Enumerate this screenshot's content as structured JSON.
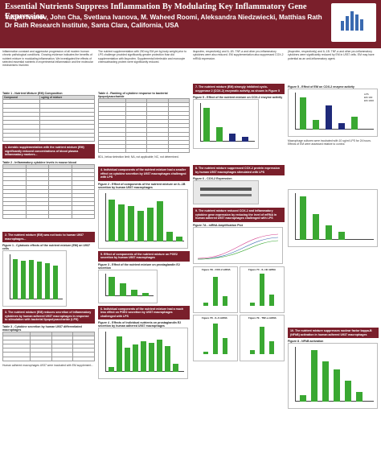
{
  "header": {
    "title": "Essential Nutrients Suppress Inflammation By Modulating Key Inflammatory Gene Expression",
    "authors": "Vadim Ivanov, John Cha, Svetlana Ivanova, M. Waheed Roomi, Aleksandra Niedzwiecki, Matthias Rath",
    "affiliation": "Dr Rath Research Institute, Santa Clara, California, USA"
  },
  "colors": {
    "brand": "#7a1f2b",
    "bar_green": "#3aa832",
    "bar_dark": "#1f2a7a",
    "line_pink": "#d43f8d"
  },
  "col1": {
    "table1_title": "Table 1 - Nutrient Mixture (EM) Composition",
    "table1_head": [
      "Compound",
      "ug/mg of mixture"
    ],
    "box1": "1. Aerobic supplementation with the nutrient mixture (EM) significantly reduced concentrations of blood plasma inflammatory markers...",
    "table2_title": "Table 2 - Inflammatory cytokine levels in mouse blood",
    "box2": "2. The nutrient mixture (EM) was not toxic to human U937 macrophages...",
    "fig1_title": "Figure 1 - Cytotoxic effects of the nutrient mixture (EM) on U937 cells",
    "box3": "3. The nutrient mixture (EM) reduces secretion of inflammatory cytokines by human adhered U937 macrophages in response to stimulation with bacterial lipopolysaccharide (LPS)",
    "table3_title": "Table 3 - Cytokine secretion by human U937 differentiated macrophages",
    "footer_note": "Human adhered macrophages U937 were incubated with EM supplement..."
  },
  "col2": {
    "table4_title": "Table 4 - Ranking of cytokine response to bacterial lipopolysaccharide",
    "box4": "4. Individual components of the nutrient mixture had a smaller effect on cytokine secretion by U937 macrophages challenged with LPS",
    "fig2_title": "Figure 2 - Effect of components of the nutrient mixture on IL-1B secretion by human U937 macrophages",
    "box5": "5. Effect of components of the nutrient mixture on PGE2 secretion by human U937 macrophages",
    "fig3_title": "Figure 3 - Effect of the nutrient mixture on prostaglandin E2 secretion",
    "box6": "6. Individual components of the nutrient mixture had a much less effect on PGE2 secretion by U937 macrophages challenged with LPS",
    "fig4_title": "Figure 4 - Effects of individual nutrients on prostaglandin E2 secretion by human adhered U937 macrophages"
  },
  "col3": {
    "box7": "7. The nutrient mixture (EM) strongly inhibited cyclo-oxygenase 2 (COX-2) enzymatic activity, as shown in Figure 5",
    "fig5_title": "Figure 5 - Effect of the nutrient mixture on COX-2 enzyme activity",
    "box8": "8. The nutrient mixture suppressed COX-2 protein expression by human U937 macrophages stimulated with LPS",
    "fig6_title": "Figure 6 - COX-2 Expression",
    "box9": "9. The nutrient mixture reduced COX-2 and inflammatory cytokine gene expression by reducing the level of mRNA in human adhered U937 macrophages challenged with LPS",
    "fig7a_title": "Figure 7A - mRNA Amplification Plot",
    "fig8_labels": [
      "Figure 7B - COX-2 mRNA",
      "Figure 7C - IL-1B mRNA",
      "Figure 7D - IL-6 mRNA",
      "Figure 7E - TNF-a mRNA"
    ]
  },
  "col4": {
    "fig_cox_title": "Figure 5 - Effect of EM on COX-2 enzyme activity",
    "box10": "10. The nutrient mixture suppresses nuclear factor kappa-B (NFkB) activation in human adhered U937 macrophages",
    "fig_nfkb_title": "Figure 8 - NFkB activation",
    "legend": [
      "LPS",
      "EM 100",
      "EM 1000"
    ]
  }
}
